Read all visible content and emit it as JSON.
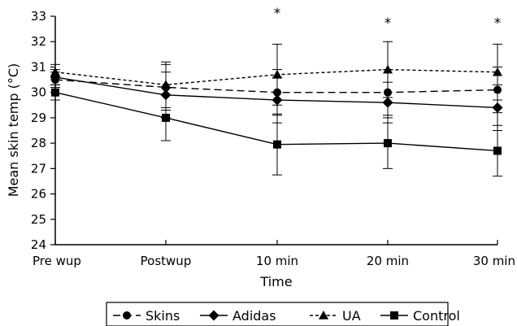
{
  "chart_data": {
    "type": "line",
    "xlabel": "Time",
    "ylabel": "Mean skin temp (°C)",
    "categories": [
      "Pre wup",
      "Postwup",
      "10 min",
      "20 min",
      "30 min"
    ],
    "ylim": [
      24,
      33
    ],
    "yticks": [
      "24",
      "25",
      "26",
      "27",
      "28",
      "29",
      "30",
      "31",
      "32",
      "33"
    ],
    "series": [
      {
        "name": "Skins",
        "marker": "circle",
        "line_style": "dash",
        "values": [
          30.5,
          30.2,
          30.0,
          30.0,
          30.1
        ],
        "error": [
          0.3,
          0.9,
          0.9,
          0.9,
          0.9
        ]
      },
      {
        "name": "Adidas",
        "marker": "diamond",
        "line_style": "solid",
        "values": [
          30.6,
          29.9,
          29.7,
          29.6,
          29.4
        ],
        "error": [
          0.3,
          0.9,
          0.9,
          0.8,
          0.9
        ]
      },
      {
        "name": "UA",
        "marker": "triangle",
        "line_style": "dot",
        "values": [
          30.8,
          30.3,
          30.7,
          30.9,
          30.8
        ],
        "error": [
          0.3,
          0.9,
          1.2,
          1.1,
          1.1
        ]
      },
      {
        "name": "Control",
        "marker": "square",
        "line_style": "solid",
        "values": [
          30.0,
          29.0,
          27.95,
          28.0,
          27.7
        ],
        "error": [
          0.3,
          0.9,
          1.2,
          1.0,
          1.0
        ]
      }
    ],
    "annotations": [
      {
        "category": "10 min",
        "text": "*"
      },
      {
        "category": "20 min",
        "text": "*"
      },
      {
        "category": "30 min",
        "text": "*"
      }
    ],
    "legend_position": "bottom",
    "grid": false
  }
}
